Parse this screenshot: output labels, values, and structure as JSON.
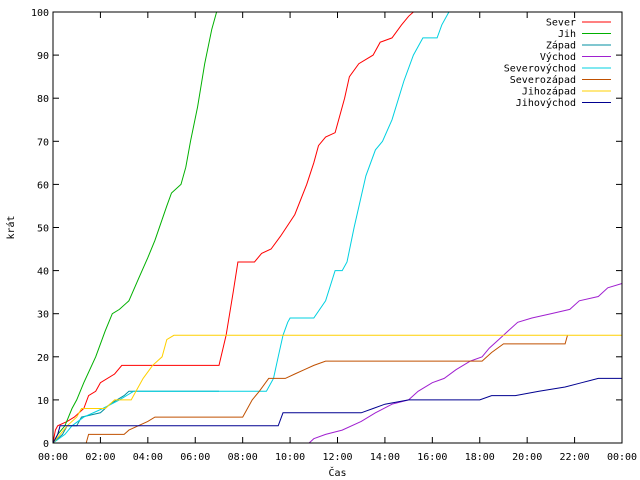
{
  "chart_data": {
    "type": "line",
    "title": "",
    "xlabel": "Čas",
    "ylabel": "krát",
    "xlim": [
      0,
      24
    ],
    "ylim": [
      0,
      100
    ],
    "xtick_values": [
      0,
      2,
      4,
      6,
      8,
      10,
      12,
      14,
      16,
      18,
      20,
      22,
      24
    ],
    "xtick_labels": [
      "00:00",
      "02:00",
      "04:00",
      "06:00",
      "08:00",
      "10:00",
      "12:00",
      "14:00",
      "16:00",
      "18:00",
      "20:00",
      "22:00",
      "00:00"
    ],
    "ytick_values": [
      0,
      10,
      20,
      30,
      40,
      50,
      60,
      70,
      80,
      90,
      100
    ],
    "ytick_labels": [
      "0",
      "10",
      "20",
      "30",
      "40",
      "50",
      "60",
      "70",
      "80",
      "90",
      "100"
    ],
    "grid": false,
    "legend_position": "top-right",
    "series": [
      {
        "name": "Sever",
        "color": "#ff0000",
        "points": [
          [
            0,
            0
          ],
          [
            0.1,
            3
          ],
          [
            0.2,
            4
          ],
          [
            0.6,
            5
          ],
          [
            0.9,
            6
          ],
          [
            1.3,
            8
          ],
          [
            1.5,
            11
          ],
          [
            1.8,
            12
          ],
          [
            2.0,
            14
          ],
          [
            2.6,
            16
          ],
          [
            2.9,
            18
          ],
          [
            4.2,
            18
          ],
          [
            7.0,
            18
          ],
          [
            7.3,
            25
          ],
          [
            7.6,
            35
          ],
          [
            7.8,
            42
          ],
          [
            8.5,
            42
          ],
          [
            8.8,
            44
          ],
          [
            9.2,
            45
          ],
          [
            9.6,
            48
          ],
          [
            10.2,
            53
          ],
          [
            10.7,
            60
          ],
          [
            11.0,
            65
          ],
          [
            11.2,
            69
          ],
          [
            11.5,
            71
          ],
          [
            11.9,
            72
          ],
          [
            12.3,
            80
          ],
          [
            12.5,
            85
          ],
          [
            12.9,
            88
          ],
          [
            13.5,
            90
          ],
          [
            13.8,
            93
          ],
          [
            14.3,
            94
          ],
          [
            14.7,
            97
          ],
          [
            15.0,
            99
          ],
          [
            15.2,
            100
          ]
        ]
      },
      {
        "name": "Jih",
        "color": "#00b000",
        "points": [
          [
            0,
            0
          ],
          [
            0.2,
            2
          ],
          [
            0.5,
            4
          ],
          [
            0.8,
            8
          ],
          [
            1.0,
            10
          ],
          [
            1.3,
            14
          ],
          [
            1.8,
            20
          ],
          [
            2.2,
            26
          ],
          [
            2.5,
            30
          ],
          [
            2.8,
            31
          ],
          [
            3.2,
            33
          ],
          [
            3.6,
            38
          ],
          [
            4.0,
            43
          ],
          [
            4.3,
            47
          ],
          [
            4.8,
            55
          ],
          [
            5.0,
            58
          ],
          [
            5.4,
            60
          ],
          [
            5.6,
            64
          ],
          [
            5.8,
            70
          ],
          [
            6.1,
            78
          ],
          [
            6.4,
            88
          ],
          [
            6.7,
            96
          ],
          [
            6.9,
            100
          ]
        ]
      },
      {
        "name": "Západ",
        "color": "#008fa0",
        "points": [
          [
            0,
            0
          ],
          [
            0.4,
            2
          ],
          [
            0.6,
            4
          ],
          [
            1.0,
            4
          ],
          [
            1.2,
            6
          ],
          [
            2.0,
            7
          ],
          [
            2.4,
            9
          ],
          [
            3.0,
            11
          ],
          [
            3.2,
            12
          ],
          [
            4.5,
            12
          ],
          [
            6.0,
            12
          ],
          [
            7.0,
            12
          ]
        ]
      },
      {
        "name": "Východ",
        "color": "#a020d0",
        "points": [
          [
            10.8,
            0
          ],
          [
            11.0,
            1
          ],
          [
            11.5,
            2
          ],
          [
            12.2,
            3
          ],
          [
            13.0,
            5
          ],
          [
            13.6,
            7
          ],
          [
            14.3,
            9
          ],
          [
            15.0,
            10
          ],
          [
            15.4,
            12
          ],
          [
            16.0,
            14
          ],
          [
            16.5,
            15
          ],
          [
            17.0,
            17
          ],
          [
            17.6,
            19
          ],
          [
            18.1,
            20
          ],
          [
            18.4,
            22
          ],
          [
            18.8,
            24
          ],
          [
            19.2,
            26
          ],
          [
            19.6,
            28
          ],
          [
            20.2,
            29
          ],
          [
            21.0,
            30
          ],
          [
            21.8,
            31
          ],
          [
            22.2,
            33
          ],
          [
            23.0,
            34
          ],
          [
            23.4,
            36
          ],
          [
            24.0,
            37
          ]
        ]
      },
      {
        "name": "Severovýchod",
        "color": "#00d0e0",
        "points": [
          [
            0,
            0
          ],
          [
            0.5,
            2
          ],
          [
            0.8,
            4
          ],
          [
            1.3,
            6
          ],
          [
            2.1,
            8
          ],
          [
            2.8,
            10
          ],
          [
            3.4,
            12
          ],
          [
            5.0,
            12
          ],
          [
            9.0,
            12
          ],
          [
            9.3,
            15
          ],
          [
            9.5,
            20
          ],
          [
            9.7,
            25
          ],
          [
            9.9,
            28
          ],
          [
            10.0,
            29
          ],
          [
            11.0,
            29
          ],
          [
            11.5,
            33
          ],
          [
            11.9,
            40
          ],
          [
            12.2,
            40
          ],
          [
            12.4,
            42
          ],
          [
            12.7,
            50
          ],
          [
            13.2,
            62
          ],
          [
            13.6,
            68
          ],
          [
            13.9,
            70
          ],
          [
            14.3,
            75
          ],
          [
            14.8,
            84
          ],
          [
            15.2,
            90
          ],
          [
            15.6,
            94
          ],
          [
            16.2,
            94
          ],
          [
            16.4,
            97
          ],
          [
            16.7,
            100
          ]
        ]
      },
      {
        "name": "Severozápad",
        "color": "#c05000",
        "points": [
          [
            1.4,
            0
          ],
          [
            1.5,
            2
          ],
          [
            3.0,
            2
          ],
          [
            3.2,
            3
          ],
          [
            4.0,
            5
          ],
          [
            4.3,
            6
          ],
          [
            6.5,
            6
          ],
          [
            8.0,
            6
          ],
          [
            8.4,
            10
          ],
          [
            8.7,
            12
          ],
          [
            9.1,
            15
          ],
          [
            9.8,
            15
          ],
          [
            10.2,
            16
          ],
          [
            10.6,
            17
          ],
          [
            11.0,
            18
          ],
          [
            11.5,
            19
          ],
          [
            17.0,
            19
          ],
          [
            18.1,
            19
          ],
          [
            18.5,
            21
          ],
          [
            19.0,
            23
          ],
          [
            21.6,
            23
          ],
          [
            21.7,
            25
          ]
        ]
      },
      {
        "name": "Jihozápad",
        "color": "#ffd000",
        "points": [
          [
            0,
            0
          ],
          [
            0.3,
            2
          ],
          [
            0.6,
            4
          ],
          [
            1.0,
            6
          ],
          [
            1.2,
            8
          ],
          [
            2.2,
            8
          ],
          [
            2.6,
            10
          ],
          [
            3.3,
            10
          ],
          [
            3.8,
            15
          ],
          [
            4.2,
            18
          ],
          [
            4.6,
            20
          ],
          [
            4.8,
            24
          ],
          [
            5.1,
            25
          ],
          [
            8.0,
            25
          ],
          [
            24.0,
            25
          ]
        ]
      },
      {
        "name": "Jihovýchod",
        "color": "#000090",
        "points": [
          [
            0,
            0
          ],
          [
            0.1,
            1
          ],
          [
            0.2,
            2
          ],
          [
            0.3,
            4
          ],
          [
            9.5,
            4
          ],
          [
            9.7,
            7
          ],
          [
            11.0,
            7
          ],
          [
            13.0,
            7
          ],
          [
            13.5,
            8
          ],
          [
            14.0,
            9
          ],
          [
            15.0,
            10
          ],
          [
            16.0,
            10
          ],
          [
            18.0,
            10
          ],
          [
            18.5,
            11
          ],
          [
            19.5,
            11
          ],
          [
            20.5,
            12
          ],
          [
            21.6,
            13
          ],
          [
            22.3,
            14
          ],
          [
            23.0,
            15
          ],
          [
            24.0,
            15
          ]
        ]
      }
    ]
  }
}
